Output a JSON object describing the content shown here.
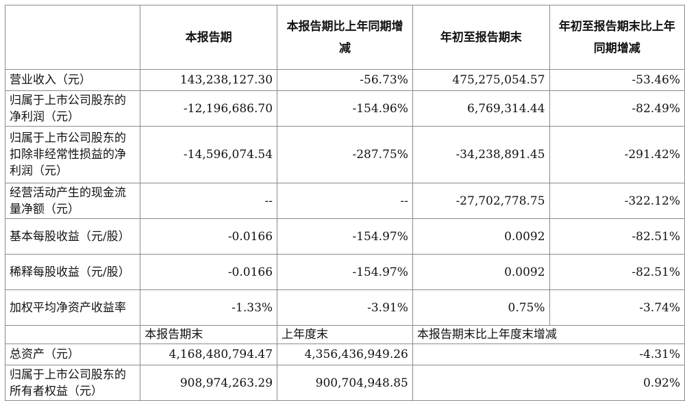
{
  "header": {
    "blank": "",
    "col1": "本报告期",
    "col2": "本报告期比上年同期增减",
    "col3": "年初至报告期末",
    "col4": "年初至报告期末比上年同期增减"
  },
  "rows": [
    {
      "label": "营业收入（元）",
      "v1": "143,238,127.30",
      "v2": "-56.73%",
      "v3": "475,275,054.57",
      "v4": "-53.46%"
    },
    {
      "label": "归属于上市公司股东的净利润（元）",
      "v1": "-12,196,686.70",
      "v2": "-154.96%",
      "v3": "6,769,314.44",
      "v4": "-82.49%"
    },
    {
      "label": "归属于上市公司股东的扣除非经常性损益的净利润（元）",
      "v1": "-14,596,074.54",
      "v2": "-287.75%",
      "v3": "-34,238,891.45",
      "v4": "-291.42%"
    },
    {
      "label": "经营活动产生的现金流量净额（元）",
      "v1": "--",
      "v2": "--",
      "v3": "-27,702,778.75",
      "v4": "-322.12%"
    },
    {
      "label": "基本每股收益（元/股）",
      "v1": "-0.0166",
      "v2": "-154.97%",
      "v3": "0.0092",
      "v4": "-82.51%"
    },
    {
      "label": "稀释每股收益（元/股）",
      "v1": "-0.0166",
      "v2": "-154.97%",
      "v3": "0.0092",
      "v4": "-82.51%"
    },
    {
      "label": "加权平均净资产收益率",
      "v1": "-1.33%",
      "v2": "-3.91%",
      "v3": "0.75%",
      "v4": "-3.74%"
    }
  ],
  "subheader": {
    "blank": "",
    "col1": "本报告期末",
    "col2": "上年度末",
    "col3": "本报告期末比上年度末增减"
  },
  "rows2": [
    {
      "label": "总资产（元）",
      "v1": "4,168,480,794.47",
      "v2": "4,356,436,949.26",
      "v3": "-4.31%"
    },
    {
      "label": "归属于上市公司股东的所有者权益（元）",
      "v1": "908,974,263.29",
      "v2": "900,704,948.85",
      "v3": "0.92%"
    }
  ]
}
